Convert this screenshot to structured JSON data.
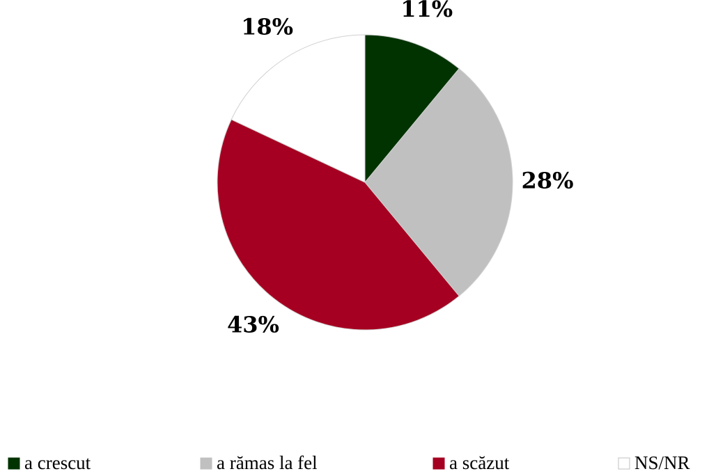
{
  "chart_data": {
    "type": "pie",
    "categories": [
      "a crescut",
      "a rămas la fel",
      "a scăzut",
      "NS/NR"
    ],
    "values": [
      11,
      28,
      43,
      18
    ],
    "value_labels": [
      "11%",
      "28%",
      "43%",
      "18%"
    ],
    "colors": [
      "#003300",
      "#c0c0c0",
      "#a50021",
      "#ffffff"
    ],
    "legend": "bottom"
  }
}
